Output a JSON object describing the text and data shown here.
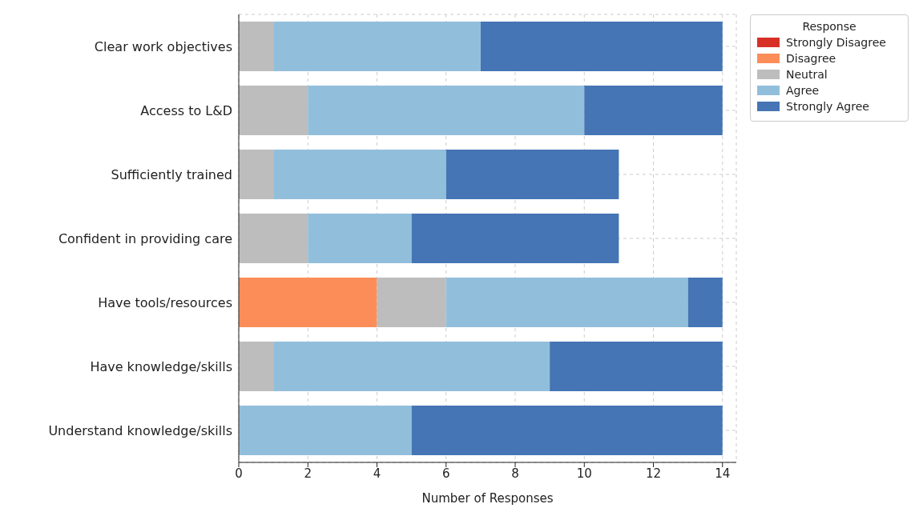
{
  "chart_data": {
    "type": "bar",
    "orientation": "horizontal",
    "stacked": true,
    "categories": [
      "Clear work objectives",
      "Access to L&D",
      "Sufficiently trained",
      "Confident in providing care",
      "Have tools/resources",
      "Have knowledge/skills",
      "Understand knowledge/skills"
    ],
    "series": [
      {
        "name": "Strongly Disagree",
        "color": "#d73027",
        "values": [
          0,
          0,
          0,
          0,
          0,
          0,
          0
        ]
      },
      {
        "name": "Disagree",
        "color": "#fc8d59",
        "values": [
          0,
          0,
          0,
          0,
          4,
          0,
          0
        ]
      },
      {
        "name": "Neutral",
        "color": "#bdbdbd",
        "values": [
          1,
          2,
          1,
          2,
          2,
          1,
          0
        ]
      },
      {
        "name": "Agree",
        "color": "#91bfdb",
        "values": [
          6,
          8,
          5,
          3,
          7,
          8,
          5
        ]
      },
      {
        "name": "Strongly Agree",
        "color": "#4575b4",
        "values": [
          7,
          4,
          5,
          6,
          1,
          5,
          9
        ]
      }
    ],
    "xlabel": "Number of Responses",
    "legend_title": "Response",
    "legend": "top right",
    "grid": true,
    "xlim": [
      0,
      14.4
    ],
    "xticks": [
      0,
      2,
      4,
      6,
      8,
      10,
      12,
      14
    ]
  }
}
